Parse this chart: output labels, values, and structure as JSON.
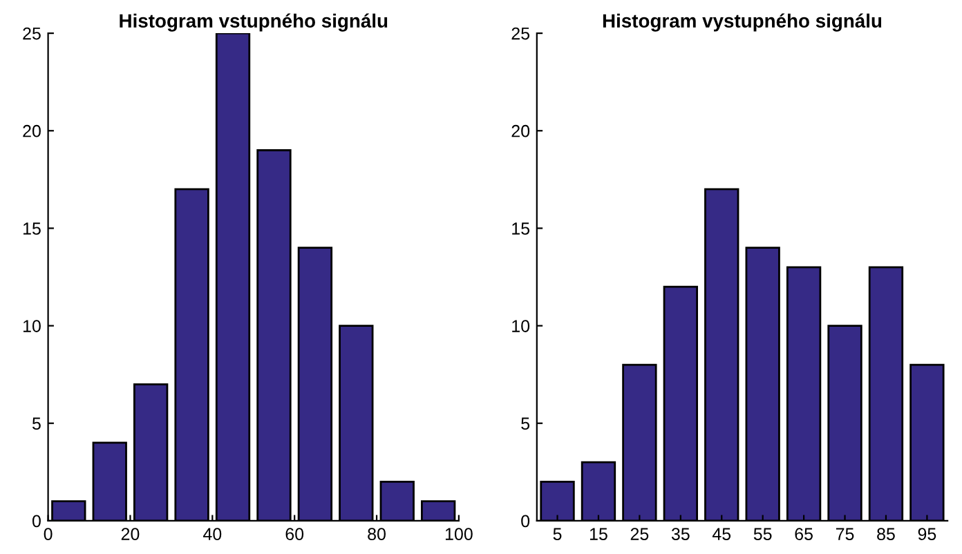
{
  "chart_data": [
    {
      "type": "bar",
      "title": "Histogram vstupného signálu",
      "x": [
        5,
        15,
        25,
        35,
        45,
        55,
        65,
        75,
        85,
        95
      ],
      "values": [
        1,
        4,
        7,
        17,
        25,
        19,
        14,
        10,
        2,
        1
      ],
      "color": "#362a86",
      "xlim": [
        0,
        100
      ],
      "xticks": [
        0,
        20,
        40,
        60,
        80,
        100
      ],
      "ylim": [
        0,
        25
      ],
      "yticks": [
        0,
        5,
        10,
        15,
        20,
        25
      ],
      "grid": false,
      "legend": false
    },
    {
      "type": "bar",
      "title": "Histogram vystupného signálu",
      "x": [
        5,
        15,
        25,
        35,
        45,
        55,
        65,
        75,
        85,
        95
      ],
      "values": [
        2,
        3,
        8,
        12,
        17,
        14,
        13,
        10,
        13,
        8
      ],
      "color": "#362a86",
      "xlim": [
        0,
        100
      ],
      "xticks": [
        5,
        15,
        25,
        35,
        45,
        55,
        65,
        75,
        85,
        95
      ],
      "ylim": [
        0,
        25
      ],
      "yticks": [
        0,
        5,
        10,
        15,
        20,
        25
      ],
      "grid": false,
      "legend": false
    }
  ]
}
